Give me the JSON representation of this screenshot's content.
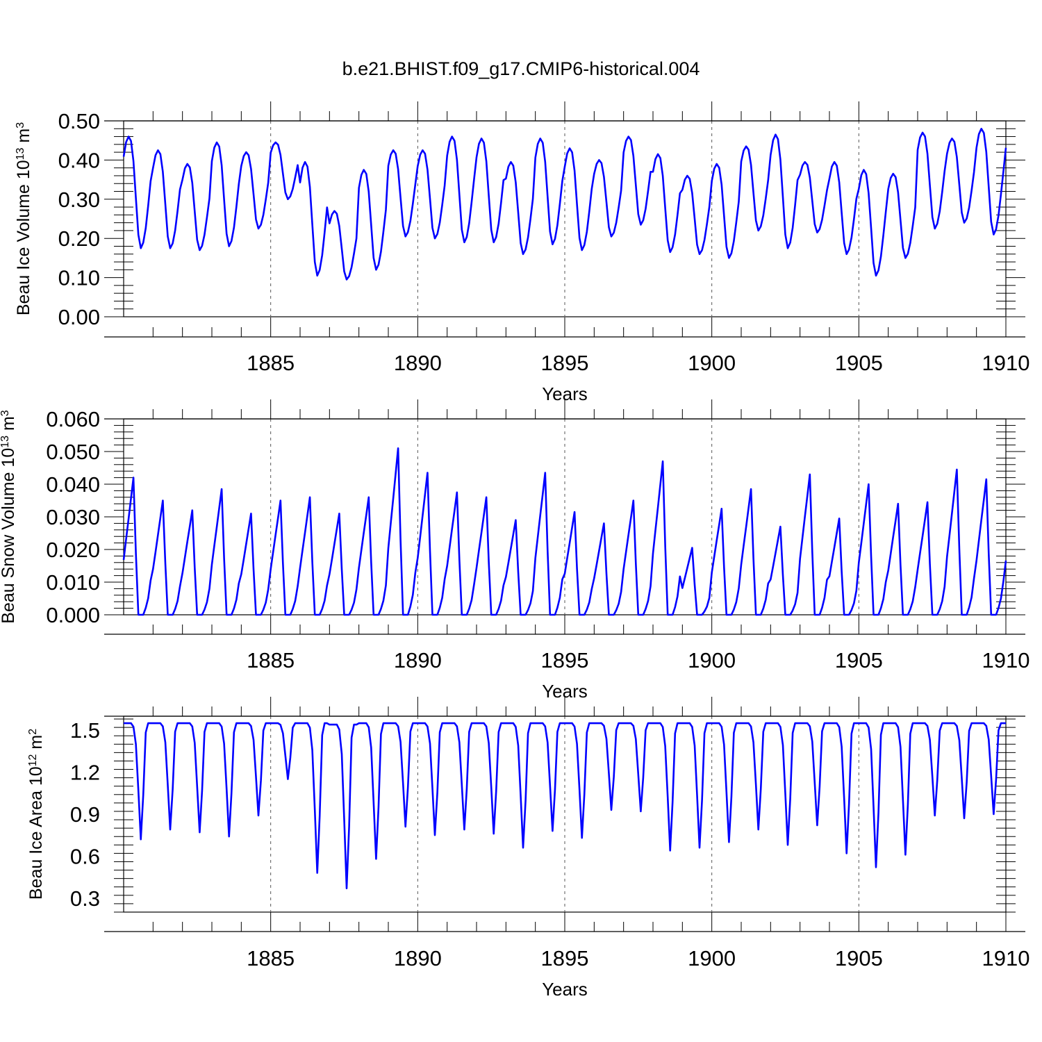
{
  "title": "b.e21.BHIST.f09_g17.CMIP6-historical.004",
  "line_color": "#0000ff",
  "chart_data": [
    {
      "type": "line",
      "ylabel_main": "Beau Ice Volume 10",
      "ylabel_exp": "13",
      "ylabel_unit": " m",
      "ylabel_unit_exp": "3",
      "xlabel": "Years",
      "xlim": [
        1880,
        1910
      ],
      "ylim": [
        0,
        0.5
      ],
      "yticks": [
        0.0,
        0.1,
        0.2,
        0.3,
        0.4,
        0.5
      ],
      "ytick_labels": [
        "0.00",
        "0.10",
        "0.20",
        "0.30",
        "0.40",
        "0.50"
      ],
      "xticks": [
        1885,
        1890,
        1895,
        1900,
        1905,
        1910
      ],
      "xtick_labels": [
        "1885",
        "1890",
        "1895",
        "1900",
        "1905",
        "1910"
      ],
      "grid": "dashed vertical at major x ticks",
      "series": [
        {
          "name": "Beau Ice Volume",
          "monthly_start": 1880.0,
          "year_max": [
            0.46,
            0.425,
            0.39,
            0.445,
            0.42,
            0.445,
            0.395,
            0.27,
            0.375,
            0.425,
            0.425,
            0.46,
            0.455,
            0.395,
            0.455,
            0.43,
            0.4,
            0.46,
            0.415,
            0.36,
            0.39,
            0.435,
            0.465,
            0.395,
            0.395,
            0.375,
            0.365,
            0.47,
            0.455,
            0.48
          ],
          "year_min": [
            0.175,
            0.175,
            0.17,
            0.18,
            0.225,
            0.3,
            0.105,
            0.095,
            0.12,
            0.205,
            0.2,
            0.19,
            0.19,
            0.16,
            0.185,
            0.17,
            0.205,
            0.235,
            0.165,
            0.16,
            0.15,
            0.22,
            0.175,
            0.215,
            0.16,
            0.105,
            0.15,
            0.225,
            0.24,
            0.21
          ]
        }
      ]
    },
    {
      "type": "line",
      "ylabel_main": "Beau Snow Volume 10",
      "ylabel_exp": "13",
      "ylabel_unit": " m",
      "ylabel_unit_exp": "3",
      "xlabel": "Years",
      "xlim": [
        1880,
        1910
      ],
      "ylim": [
        0,
        0.06
      ],
      "yticks": [
        0.0,
        0.01,
        0.02,
        0.03,
        0.04,
        0.05,
        0.06
      ],
      "ytick_labels": [
        "0.000",
        "0.010",
        "0.020",
        "0.030",
        "0.040",
        "0.050",
        "0.060"
      ],
      "xticks": [
        1885,
        1890,
        1895,
        1900,
        1905,
        1910
      ],
      "xtick_labels": [
        "1885",
        "1890",
        "1895",
        "1900",
        "1905",
        "1910"
      ],
      "grid": "dashed vertical at major x ticks",
      "series": [
        {
          "name": "Beau Snow Volume",
          "monthly_start": 1880.0,
          "year_max": [
            0.042,
            0.035,
            0.032,
            0.0385,
            0.031,
            0.035,
            0.036,
            0.031,
            0.036,
            0.051,
            0.0435,
            0.0375,
            0.036,
            0.029,
            0.0435,
            0.0315,
            0.028,
            0.035,
            0.047,
            0.0205,
            0.0325,
            0.0385,
            0.027,
            0.043,
            0.0295,
            0.04,
            0.034,
            0.0345,
            0.0445,
            0.0415
          ],
          "year_min": [
            0.0,
            0.0,
            0.0,
            0.0,
            0.0,
            0.0,
            0.0,
            0.0,
            0.0,
            0.0,
            0.0,
            0.0,
            0.0,
            0.0,
            0.0,
            0.0,
            0.0,
            0.0,
            0.0,
            0.0,
            0.0,
            0.0,
            0.0,
            0.0,
            0.0,
            0.0,
            0.0,
            0.0,
            0.0,
            0.0
          ]
        }
      ]
    },
    {
      "type": "line",
      "ylabel_main": "Beau Ice Area 10",
      "ylabel_exp": "12",
      "ylabel_unit": " m",
      "ylabel_unit_exp": "2",
      "xlabel": "Years",
      "xlim": [
        1880,
        1910
      ],
      "ylim": [
        0.2,
        1.6
      ],
      "yticks": [
        0.3,
        0.6,
        0.9,
        1.2,
        1.5
      ],
      "ytick_labels": [
        "0.3",
        "0.6",
        "0.9",
        "1.2",
        "1.5"
      ],
      "xticks": [
        1885,
        1890,
        1895,
        1900,
        1905,
        1910
      ],
      "xtick_labels": [
        "1885",
        "1890",
        "1895",
        "1900",
        "1905",
        "1910"
      ],
      "grid": "dashed vertical at major x ticks",
      "series": [
        {
          "name": "Beau Ice Area",
          "monthly_start": 1880.0,
          "year_max": [
            1.55,
            1.55,
            1.55,
            1.55,
            1.55,
            1.55,
            1.55,
            1.54,
            1.55,
            1.55,
            1.55,
            1.55,
            1.55,
            1.55,
            1.55,
            1.55,
            1.55,
            1.55,
            1.55,
            1.55,
            1.55,
            1.55,
            1.55,
            1.55,
            1.55,
            1.55,
            1.55,
            1.55,
            1.55,
            1.55
          ],
          "year_min": [
            0.72,
            0.79,
            0.77,
            0.74,
            0.89,
            1.15,
            0.48,
            0.37,
            0.58,
            0.81,
            0.75,
            0.79,
            0.76,
            0.66,
            0.78,
            0.73,
            0.93,
            0.92,
            0.64,
            0.66,
            0.7,
            0.79,
            0.68,
            0.82,
            0.62,
            0.52,
            0.61,
            0.89,
            0.87,
            0.9
          ]
        }
      ]
    }
  ]
}
